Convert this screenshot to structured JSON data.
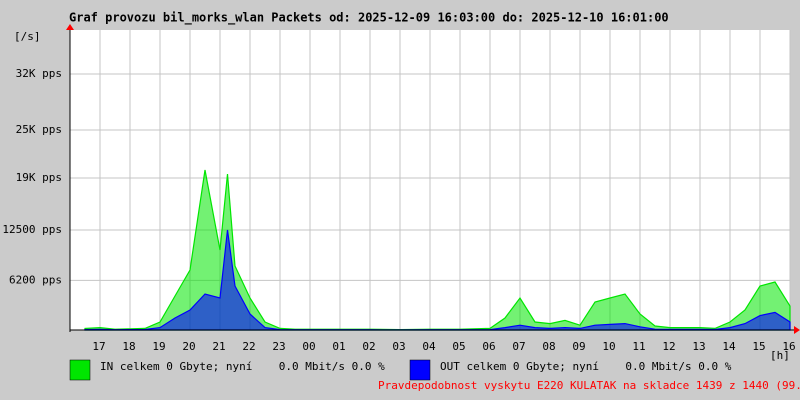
{
  "chart_data": {
    "type": "area",
    "title": "Graf provozu bil_morks_wlan Packets od: 2025-12-09 16:03:00 do: 2025-12-10 16:01:00",
    "y_label": "[/s]",
    "x_label": "[h]",
    "x": [
      16.5,
      17,
      17.5,
      18,
      18.5,
      19,
      19.5,
      20,
      20.5,
      21,
      21.25,
      21.5,
      22,
      22.5,
      23,
      23.5,
      24,
      25,
      26,
      27,
      28,
      29,
      30,
      30.5,
      31,
      31.5,
      32,
      32.5,
      33,
      33.5,
      34,
      34.5,
      35,
      35.5,
      36,
      36.5,
      37,
      37.5,
      38,
      38.5,
      39,
      39.5,
      40
    ],
    "series": [
      {
        "name": "IN celkem 0 Gbyte; nyní    0.0 Mbit/s 0.0 %",
        "color": "#00e600",
        "values": [
          200,
          300,
          100,
          150,
          200,
          1000,
          4250,
          7500,
          20000,
          10000,
          19500,
          8000,
          4000,
          1000,
          200,
          100,
          100,
          100,
          100,
          50,
          100,
          100,
          200,
          1500,
          4000,
          1000,
          800,
          1200,
          600,
          3500,
          4000,
          4500,
          2000,
          500,
          300,
          300,
          300,
          200,
          1000,
          2500,
          5500,
          6000,
          3000
        ]
      },
      {
        "name": "OUT celkem 0 Gbyte; nyní    0.0 Mbit/s 0.0 %",
        "color": "#0000ff",
        "values": [
          50,
          80,
          30,
          50,
          60,
          300,
          1500,
          2500,
          4500,
          4000,
          12500,
          5500,
          2000,
          300,
          50,
          30,
          30,
          30,
          30,
          20,
          30,
          30,
          50,
          300,
          600,
          300,
          200,
          300,
          200,
          600,
          700,
          800,
          400,
          100,
          80,
          80,
          80,
          60,
          300,
          800,
          1800,
          2200,
          1000
        ]
      }
    ],
    "xlim": [
      16,
      40
    ],
    "xticks": [
      17,
      18,
      19,
      20,
      21,
      22,
      23,
      {
        "value": 24,
        "label": "00"
      },
      {
        "value": 25,
        "label": "01"
      },
      {
        "value": 26,
        "label": "02"
      },
      {
        "value": 27,
        "label": "03"
      },
      {
        "value": 28,
        "label": "04"
      },
      {
        "value": 29,
        "label": "05"
      },
      {
        "value": 30,
        "label": "06"
      },
      {
        "value": 31,
        "label": "07"
      },
      {
        "value": 32,
        "label": "08"
      },
      {
        "value": 33,
        "label": "09"
      },
      {
        "value": 34,
        "label": "10"
      },
      {
        "value": 35,
        "label": "11"
      },
      {
        "value": 36,
        "label": "12"
      },
      {
        "value": 37,
        "label": "13"
      },
      {
        "value": 38,
        "label": "14"
      },
      {
        "value": 39,
        "label": "15"
      },
      {
        "value": 40,
        "label": "16"
      }
    ],
    "ylim": [
      0,
      37500
    ],
    "yticks": [
      {
        "value": 6200,
        "label": "6200 pps"
      },
      {
        "value": 12500,
        "label": "12500 pps"
      },
      {
        "value": 19000,
        "label": "19K pps"
      },
      {
        "value": 25000,
        "label": "25K pps"
      },
      {
        "value": 32000,
        "label": "32K pps"
      }
    ],
    "grid": true,
    "footer": "Pravdepodobnost vyskytu E220 KULATAK na skladce 1439 z 1440 (99.9 %)"
  }
}
